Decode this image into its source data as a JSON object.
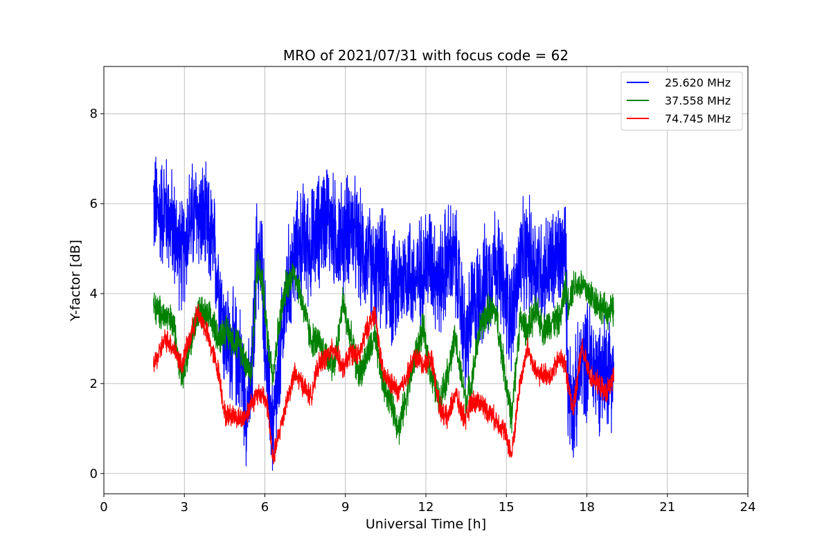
{
  "chart_data": {
    "type": "line",
    "title": "MRO of 2021/07/31 with focus code = 62",
    "xlabel": "Universal Time [h]",
    "ylabel": "Y-factor [dB]",
    "xlim": [
      0,
      24
    ],
    "ylim": [
      -0.45,
      9.05
    ],
    "xticks": [
      0,
      3,
      6,
      9,
      12,
      15,
      18,
      21,
      24
    ],
    "yticks": [
      0,
      2,
      4,
      6,
      8
    ],
    "grid": true,
    "legend_position": "top-right",
    "series": [
      {
        "name": "25.620 MHz",
        "color": "#0000ff",
        "noise_band": 1.5,
        "x": [
          1.85,
          2.0,
          2.3,
          2.6,
          2.9,
          3.2,
          3.5,
          3.8,
          4.1,
          4.3,
          4.5,
          4.8,
          5.1,
          5.3,
          5.5,
          5.7,
          5.9,
          6.1,
          6.3,
          6.5,
          6.8,
          7.1,
          7.4,
          7.7,
          8.0,
          8.3,
          8.6,
          8.9,
          9.2,
          9.5,
          9.8,
          10.1,
          10.4,
          10.7,
          11.0,
          11.3,
          11.6,
          11.9,
          12.2,
          12.5,
          12.8,
          13.1,
          13.3,
          13.5,
          13.7,
          14.0,
          14.3,
          14.6,
          14.9,
          15.2,
          15.5,
          15.8,
          16.1,
          16.4,
          16.7,
          17.0,
          17.2,
          17.3,
          17.5,
          17.8,
          18.1,
          18.4,
          18.7,
          19.0
        ],
        "y": [
          6.0,
          5.8,
          5.9,
          5.4,
          4.8,
          5.6,
          5.8,
          5.5,
          5.0,
          4.2,
          3.0,
          2.8,
          2.5,
          1.5,
          1.8,
          5.0,
          4.5,
          2.0,
          1.0,
          2.0,
          4.0,
          4.8,
          5.2,
          5.0,
          5.4,
          5.8,
          5.3,
          5.2,
          5.6,
          5.0,
          4.8,
          4.4,
          4.6,
          4.0,
          4.2,
          4.6,
          4.2,
          4.6,
          4.8,
          4.2,
          4.8,
          4.7,
          3.8,
          2.8,
          3.6,
          4.0,
          4.3,
          4.8,
          4.0,
          3.5,
          4.6,
          4.9,
          4.6,
          4.5,
          4.6,
          4.8,
          5.0,
          2.0,
          1.5,
          2.4,
          2.6,
          2.2,
          2.4,
          2.3
        ]
      },
      {
        "name": "37.558 MHz",
        "color": "#008000",
        "noise_band": 0.45,
        "x": [
          1.85,
          2.0,
          2.3,
          2.6,
          2.9,
          3.2,
          3.5,
          3.8,
          4.1,
          4.3,
          4.5,
          4.8,
          5.1,
          5.3,
          5.5,
          5.7,
          5.9,
          6.1,
          6.3,
          6.5,
          6.8,
          7.1,
          7.4,
          7.7,
          8.0,
          8.3,
          8.6,
          8.9,
          9.2,
          9.5,
          9.8,
          10.1,
          10.4,
          10.7,
          11.0,
          11.3,
          11.6,
          11.9,
          12.2,
          12.5,
          12.8,
          13.1,
          13.3,
          13.5,
          13.7,
          14.0,
          14.3,
          14.6,
          14.9,
          15.2,
          15.5,
          15.8,
          16.1,
          16.4,
          16.7,
          17.0,
          17.2,
          17.3,
          17.5,
          17.8,
          18.1,
          18.4,
          18.7,
          19.0
        ],
        "y": [
          3.7,
          3.6,
          3.5,
          3.3,
          2.2,
          2.8,
          3.6,
          3.5,
          3.3,
          3.0,
          3.2,
          3.0,
          2.8,
          2.5,
          2.2,
          4.6,
          4.3,
          3.0,
          2.2,
          3.2,
          4.2,
          4.5,
          3.8,
          3.0,
          2.9,
          2.6,
          2.4,
          3.8,
          3.0,
          2.2,
          2.6,
          3.0,
          2.0,
          1.6,
          1.0,
          1.8,
          2.6,
          3.2,
          2.2,
          1.6,
          2.2,
          3.0,
          2.2,
          1.6,
          2.0,
          3.2,
          3.6,
          3.6,
          2.4,
          1.2,
          3.4,
          3.2,
          3.6,
          3.2,
          3.4,
          3.4,
          4.2,
          3.8,
          4.2,
          4.2,
          4.0,
          3.8,
          3.6,
          3.6
        ]
      },
      {
        "name": "74.745 MHz",
        "color": "#ff0000",
        "noise_band": 0.3,
        "x": [
          1.85,
          2.0,
          2.3,
          2.6,
          2.9,
          3.2,
          3.5,
          3.8,
          4.1,
          4.3,
          4.5,
          4.8,
          5.1,
          5.3,
          5.5,
          5.7,
          5.9,
          6.1,
          6.3,
          6.5,
          6.8,
          7.1,
          7.4,
          7.7,
          8.0,
          8.3,
          8.6,
          8.9,
          9.2,
          9.5,
          9.8,
          10.1,
          10.4,
          10.7,
          11.0,
          11.3,
          11.6,
          11.9,
          12.2,
          12.5,
          12.8,
          13.1,
          13.3,
          13.5,
          13.7,
          14.0,
          14.3,
          14.6,
          14.9,
          15.2,
          15.5,
          15.8,
          16.1,
          16.4,
          16.7,
          17.0,
          17.2,
          17.3,
          17.5,
          17.8,
          18.1,
          18.4,
          18.7,
          19.0
        ],
        "y": [
          2.4,
          2.6,
          3.0,
          2.8,
          2.4,
          3.0,
          3.6,
          3.2,
          2.6,
          2.2,
          1.3,
          1.3,
          1.2,
          1.3,
          1.6,
          1.7,
          1.8,
          1.5,
          0.3,
          0.8,
          1.6,
          2.2,
          2.0,
          1.7,
          2.4,
          2.6,
          2.8,
          2.3,
          2.7,
          2.6,
          3.2,
          3.6,
          2.2,
          2.0,
          1.8,
          2.2,
          2.6,
          2.4,
          2.6,
          1.5,
          1.2,
          1.8,
          1.4,
          1.2,
          1.6,
          1.6,
          1.4,
          1.2,
          1.0,
          0.4,
          2.0,
          2.8,
          2.2,
          2.2,
          2.2,
          2.6,
          2.4,
          2.0,
          1.4,
          2.8,
          2.2,
          2.0,
          1.8,
          2.1
        ]
      }
    ]
  }
}
